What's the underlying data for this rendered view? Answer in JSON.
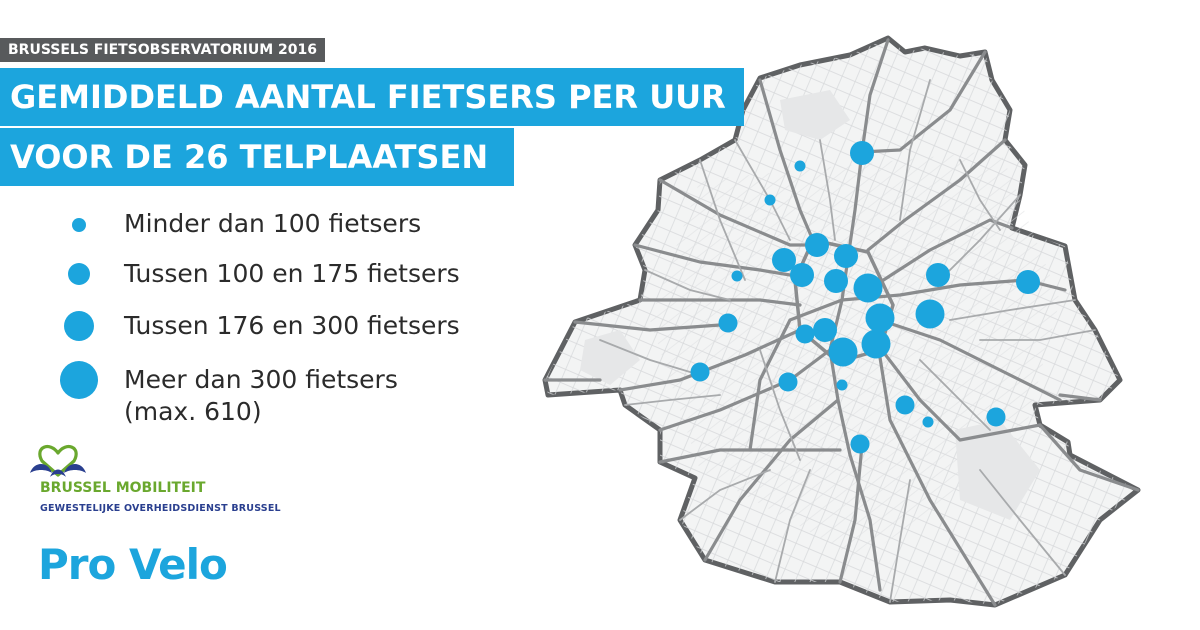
{
  "header": {
    "eyebrow": "BRUSSELS FIETSOBSERVATORIUM 2016",
    "title_line_1": "GEMIDDELD AANTAL FIETSERS PER UUR",
    "title_line_2": "VOOR DE 26 TELPLAATSEN"
  },
  "legend": {
    "items": [
      {
        "label": "Minder dan 100 fietsers",
        "size_class": 1
      },
      {
        "label": "Tussen 100 en 175 fietsers",
        "size_class": 2
      },
      {
        "label": "Tussen 176 en 300 fietsers",
        "size_class": 3
      },
      {
        "label": "Meer dan 300 fietsers",
        "sub": "(max. 610)",
        "size_class": 4
      }
    ]
  },
  "logos": {
    "brussel_mobiliteit": "BRUSSEL MOBILITEIT",
    "brussel_mobiliteit_sub": "GEWESTELIJKE OVERHEIDSDIENST BRUSSEL",
    "pro_velo": "Pro Velo"
  },
  "map": {
    "region": "Brussels Capital Region",
    "count_points": 26,
    "size_legend": {
      "1": "Minder dan 100 fietsers",
      "2": "Tussen 100 en 175 fietsers",
      "3": "Tussen 176 en 300 fietsers",
      "4": "Meer dan 300 fietsers"
    }
  },
  "colors": {
    "accent": "#1ca5dd",
    "eyebrow_bg": "#585a5c",
    "map_outline": "#5f6163",
    "map_roads": "#8a8c8e",
    "map_fill": "#f3f4f4",
    "bm_green": "#6aa82e",
    "bm_blue": "#2a3f8f"
  }
}
